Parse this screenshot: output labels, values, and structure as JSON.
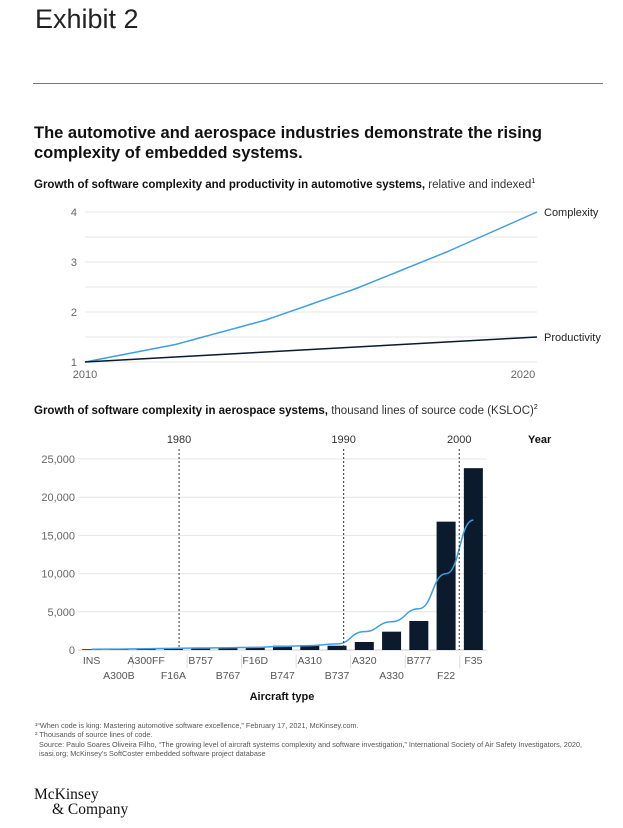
{
  "exhibit": "Exhibit 2",
  "headline": "The automotive and aerospace industries demonstrate the rising complexity of embedded systems.",
  "chart_data": [
    {
      "type": "line",
      "title": "Growth of software complexity and productivity in automotive systems,",
      "subtitle": "relative and indexed",
      "footnote_ref": "1",
      "x": [
        2010,
        2012,
        2014,
        2016,
        2018,
        2020
      ],
      "x_ticks": [
        "2010",
        "2020"
      ],
      "ylim": [
        1,
        4
      ],
      "y_ticks": [
        "1",
        "2",
        "3",
        "4"
      ],
      "grid": true,
      "series": [
        {
          "name": "Complexity",
          "values": [
            1,
            1.35,
            1.84,
            2.47,
            3.2,
            4
          ],
          "color": "#3d9fe0"
        },
        {
          "name": "Productivity",
          "values": [
            1,
            1.1,
            1.2,
            1.3,
            1.4,
            1.5
          ],
          "color": "#0b1a2c"
        }
      ]
    },
    {
      "type": "bar",
      "title": "Growth of software complexity in aerospace systems,",
      "subtitle": "thousand lines of source code (KSLOC)",
      "footnote_ref": "2",
      "categories": [
        "INS",
        "A300B",
        "A300FF",
        "F16A",
        "B757",
        "B767",
        "F16D",
        "B747",
        "A310",
        "B737",
        "A320",
        "A330",
        "B777",
        "F22",
        "F35"
      ],
      "values": [
        100,
        150,
        200,
        250,
        300,
        300,
        400,
        560,
        650,
        560,
        1050,
        2400,
        3800,
        16800,
        23800
      ],
      "trend": [
        100,
        120,
        160,
        220,
        260,
        300,
        350,
        480,
        580,
        800,
        2400,
        3700,
        5400,
        10000,
        17000
      ],
      "bar_color": "#0b1a2c",
      "trend_color": "#3d9fe0",
      "ylim": [
        0,
        25000
      ],
      "y_ticks": [
        "0",
        "5,000",
        "10,000",
        "15,000",
        "20,000",
        "25,000"
      ],
      "xlabel": "Aircraft type",
      "year_label": "Year",
      "year_markers": [
        {
          "label": "1980",
          "after": "F16A"
        },
        {
          "label": "1990",
          "after": "B737"
        },
        {
          "label": "2000",
          "after": "F22"
        }
      ],
      "grid": true
    }
  ],
  "footnotes": [
    "¹“When code is king: Mastering automotive software excellence,” February 17, 2021, McKinsey.com.",
    "² Thousands of source lines of code.",
    "Source: Paulo Soares Oliveira Filho, “The growing level of aircraft systems complexity and software investigation,” International Society of Air Safety Investigators, 2020, isasi.org; McKinsey’s SoftCoster embedded software project database"
  ],
  "logo": [
    "McKinsey",
    "& Company"
  ]
}
